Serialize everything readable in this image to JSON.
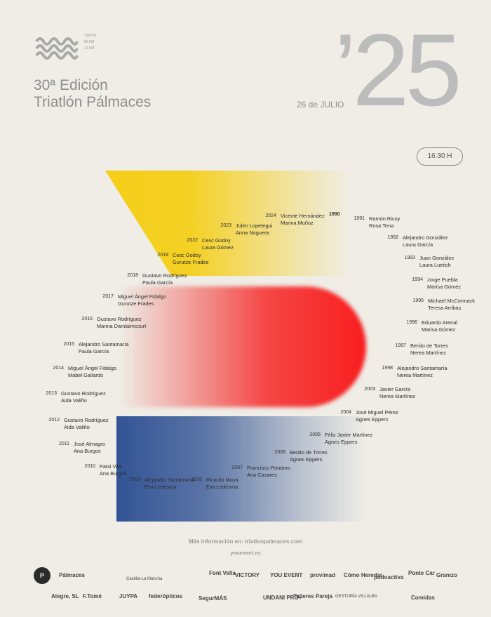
{
  "header": {
    "distances": [
      "1500 M",
      "60 KM",
      "12 KM"
    ],
    "edition": "30ª Edición",
    "title": "Triatlón Pálmaces",
    "big_year": "’25",
    "date": "26 de JULIO",
    "time": "16:30 H"
  },
  "winners": [
    {
      "year": "1990",
      "man": "",
      "woman": ""
    },
    {
      "year": "1991",
      "man": "Ramón Ricoy",
      "woman": "Rosa Tena"
    },
    {
      "year": "1992",
      "man": "Alejandro González",
      "woman": "Laura García"
    },
    {
      "year": "1993",
      "man": "Juan González",
      "woman": "Laura Luetich"
    },
    {
      "year": "1994",
      "man": "Jorge Puebla",
      "woman": "Marisa Gómez"
    },
    {
      "year": "1995",
      "man": "Michael McCormack",
      "woman": "Teresa Arribas"
    },
    {
      "year": "1996",
      "man": "Eduardo Arenal",
      "woman": "Marisa Gómez"
    },
    {
      "year": "1997",
      "man": "Benito de Torres",
      "woman": "Nerea Martínez"
    },
    {
      "year": "1998",
      "man": "Alejandro Santamaría",
      "woman": "Nerea Martínez"
    },
    {
      "year": "2003",
      "man": "Javier García",
      "woman": "Nerea Martínez"
    },
    {
      "year": "2004",
      "man": "José Miguel Pérez",
      "woman": "Agnes Eppers"
    },
    {
      "year": "2005",
      "man": "Félix Javier Martínez",
      "woman": "Agnes Eppers"
    },
    {
      "year": "2006",
      "man": "Benito de Torres",
      "woman": "Agnes Eppers"
    },
    {
      "year": "2007",
      "man": "Francisco Pontano",
      "woman": "Ana Casares"
    },
    {
      "year": "2008",
      "man": "Ricardo Moya",
      "woman": "Eva Ledesma"
    },
    {
      "year": "2009",
      "man": "Alejandro Santamaría",
      "woman": "Eva Ledesma"
    },
    {
      "year": "2010",
      "man": "Patxi Vila",
      "woman": "Ana Burgos"
    },
    {
      "year": "2011",
      "man": "José Almagro",
      "woman": "Ana Burgos"
    },
    {
      "year": "2012",
      "man": "Gustavo Rodríguez",
      "woman": "Aida Valiño"
    },
    {
      "year": "2013",
      "man": "Gustavo Rodríguez",
      "woman": "Aida Valiño"
    },
    {
      "year": "2014",
      "man": "Miguel Ángel Fidalgo",
      "woman": "Mabel Gallardo"
    },
    {
      "year": "2015",
      "man": "Alejandro Santamaría",
      "woman": "Paula García"
    },
    {
      "year": "2016",
      "man": "Gustavo Rodríguez",
      "woman": "Marina Damlaimcourt"
    },
    {
      "year": "2017",
      "man": "Miguel Ángel Fidalgo",
      "woman": "Gurutze Frades"
    },
    {
      "year": "2018",
      "man": "Gustavo Rodríguez",
      "woman": "Paula García"
    },
    {
      "year": "2019",
      "man": "Cesc Godoy",
      "woman": "Gurutze Frades"
    },
    {
      "year": "2022",
      "man": "Cesc Godoy",
      "woman": "Laura Gómez"
    },
    {
      "year": "2023",
      "man": "Julen Lopetegui",
      "woman": "Anna Noguera"
    },
    {
      "year": "2024",
      "man": "Vicente Hernández",
      "woman": "Marina Muñoz"
    }
  ],
  "info": {
    "more": "Más información en: triatlonpalmaces.com",
    "web": "youevent.es"
  },
  "sponsors": [
    "Pálmaces",
    "Castilla-La Mancha",
    "Font Vella",
    "VICTORY",
    "YOU EVENT",
    "provimad",
    "Cómo Heredar",
    "podoactiva",
    "Ponte Car",
    "Granizo",
    "Alegre, SL",
    "F.Tomé",
    "JUYPA",
    "federópticos",
    "SegurMÁS",
    "UNDANI PRO+",
    "Talleres Pareja",
    "GESTORÍA VILLALBA",
    "Comidas"
  ],
  "colors": {
    "yellow": "#f5cd0f",
    "red": "#f82020",
    "blue": "#284b91",
    "text_gray": "#8e8e8e",
    "background": "#efede6"
  }
}
